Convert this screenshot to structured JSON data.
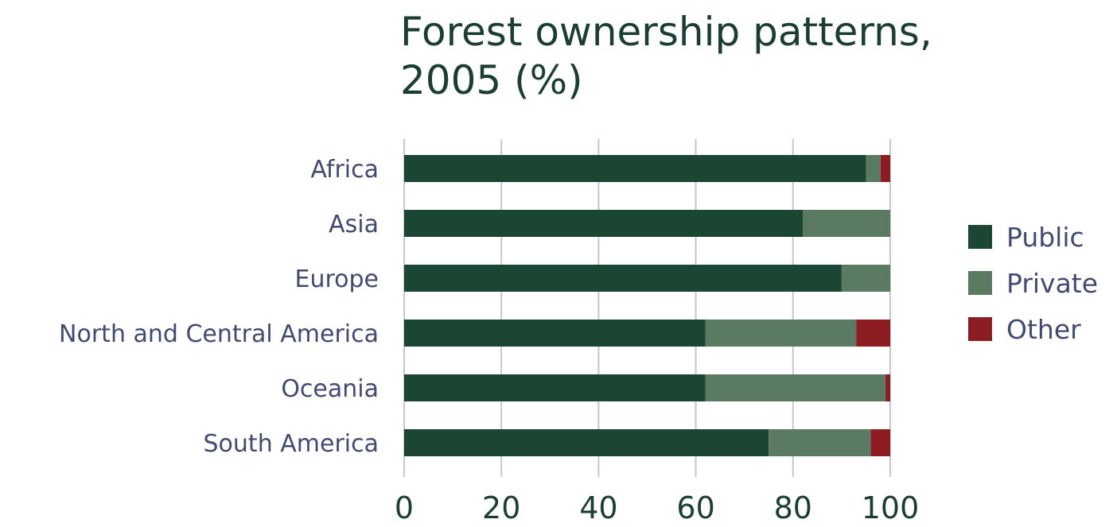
{
  "chart_data": {
    "type": "bar",
    "orientation": "horizontal",
    "stacked": true,
    "title": [
      "Forest ownership patterns,",
      "2005 (%)"
    ],
    "categories": [
      "Africa",
      "Asia",
      "Europe",
      "North and Central America",
      "Oceania",
      "South America"
    ],
    "series": [
      {
        "name": "Public",
        "color": "#1b4634",
        "values": [
          95,
          82,
          90,
          62,
          62,
          75
        ]
      },
      {
        "name": "Private",
        "color": "#5a7a62",
        "values": [
          3,
          18,
          10,
          31,
          37,
          21
        ]
      },
      {
        "name": "Other",
        "color": "#8c1d22",
        "values": [
          2,
          0,
          0,
          7,
          1,
          4
        ]
      }
    ],
    "xlim": [
      0,
      100
    ],
    "xticks": [
      "0",
      "20",
      "40",
      "60",
      "80",
      "100"
    ],
    "xlabel": "",
    "ylabel": "",
    "grid": "vertical",
    "legend_position": "right"
  }
}
